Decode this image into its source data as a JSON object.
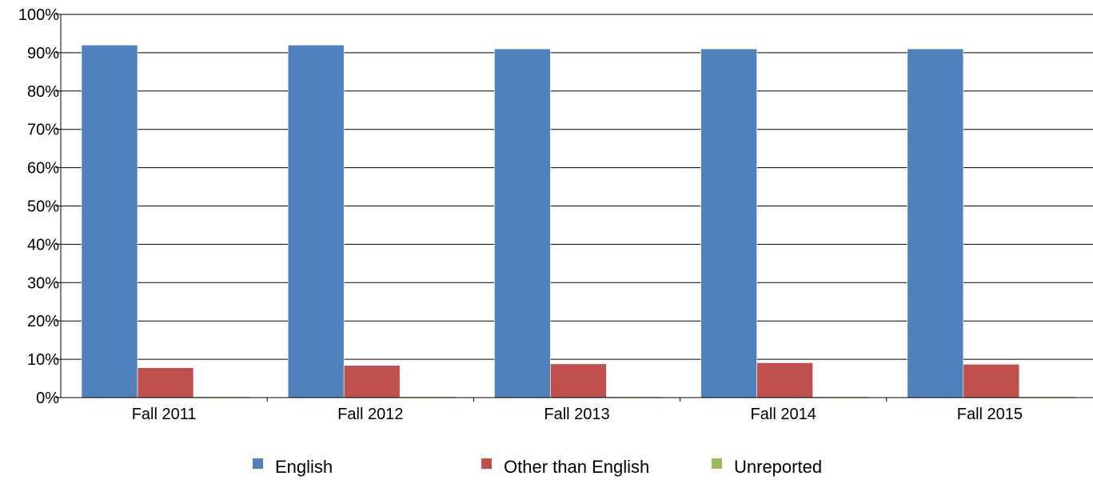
{
  "chart_data": {
    "type": "bar",
    "title": "",
    "xlabel": "",
    "ylabel": "",
    "categories": [
      "Fall 2011",
      "Fall 2012",
      "Fall 2013",
      "Fall 2014",
      "Fall 2015"
    ],
    "series": [
      {
        "name": "English",
        "values": [
          92,
          92,
          91,
          91,
          91
        ],
        "color": "#4f81bd"
      },
      {
        "name": "Other than English",
        "values": [
          7.8,
          8.4,
          8.8,
          9.1,
          8.7
        ],
        "color": "#c0504d"
      },
      {
        "name": "Unreported",
        "values": [
          0.2,
          0.2,
          0.2,
          0.2,
          0.2
        ],
        "color": "#9bbb59"
      }
    ],
    "ylim": [
      0,
      100
    ],
    "yticks": [
      "0%",
      "10%",
      "20%",
      "30%",
      "40%",
      "50%",
      "60%",
      "70%",
      "80%",
      "90%",
      "100%"
    ],
    "grid": true,
    "legend_position": "bottom"
  }
}
